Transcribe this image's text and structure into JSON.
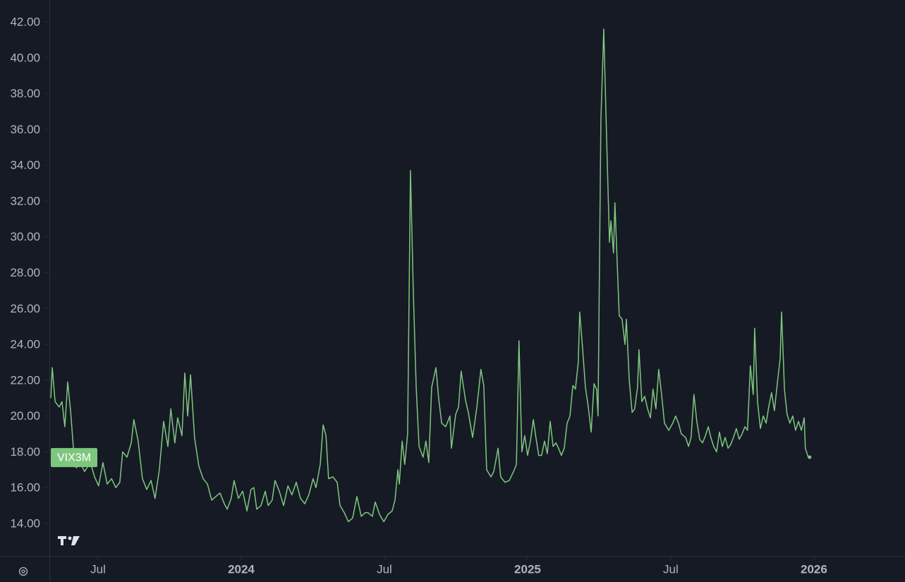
{
  "chart_data": {
    "type": "line",
    "x": [
      2023.335,
      2023.34,
      2023.35,
      2023.364,
      2023.374,
      2023.384,
      2023.394,
      2023.404,
      2023.414,
      2023.424,
      2023.438,
      2023.453,
      2023.473,
      2023.488,
      2023.502,
      2023.517,
      2023.532,
      2023.547,
      2023.562,
      2023.576,
      2023.586,
      2023.601,
      2023.616,
      2023.625,
      2023.64,
      2023.655,
      2023.67,
      2023.685,
      2023.699,
      2023.714,
      2023.729,
      2023.744,
      2023.754,
      2023.768,
      2023.778,
      2023.793,
      2023.803,
      2023.813,
      2023.823,
      2023.837,
      2023.852,
      2023.867,
      2023.882,
      2023.897,
      2023.911,
      2023.926,
      2023.941,
      2023.951,
      2023.965,
      2023.975,
      2023.99,
      2024.005,
      2024.02,
      2024.034,
      2024.044,
      2024.054,
      2024.069,
      2024.084,
      2024.094,
      2024.108,
      2024.118,
      2024.133,
      2024.148,
      2024.163,
      2024.177,
      2024.192,
      2024.207,
      2024.222,
      2024.236,
      2024.251,
      2024.261,
      2024.276,
      2024.286,
      2024.296,
      2024.305,
      2024.32,
      2024.335,
      2024.345,
      2024.36,
      2024.374,
      2024.389,
      2024.404,
      2024.419,
      2024.433,
      2024.443,
      2024.458,
      2024.468,
      2024.483,
      2024.498,
      2024.512,
      2024.527,
      2024.537,
      2024.547,
      2024.552,
      2024.562,
      2024.571,
      2024.581,
      2024.591,
      2024.601,
      2024.611,
      2024.621,
      2024.635,
      2024.645,
      2024.655,
      2024.665,
      2024.68,
      2024.69,
      2024.7,
      2024.714,
      2024.729,
      2024.734,
      2024.749,
      2024.759,
      2024.768,
      2024.783,
      2024.793,
      2024.808,
      2024.823,
      2024.837,
      2024.847,
      2024.857,
      2024.872,
      2024.882,
      2024.897,
      2024.906,
      2024.921,
      2024.936,
      2024.951,
      2024.961,
      2024.97,
      2024.98,
      2024.99,
      2025.0,
      2025.01,
      2025.02,
      2025.03,
      2025.039,
      2025.049,
      2025.059,
      2025.069,
      2025.079,
      2025.089,
      2025.099,
      2025.108,
      2025.118,
      2025.128,
      2025.138,
      2025.148,
      2025.158,
      2025.167,
      2025.177,
      2025.182,
      2025.192,
      2025.202,
      2025.212,
      2025.222,
      2025.232,
      2025.241,
      2025.246,
      2025.256,
      2025.266,
      2025.276,
      2025.286,
      2025.291,
      2025.3,
      2025.305,
      2025.315,
      2025.32,
      2025.33,
      2025.34,
      2025.345,
      2025.355,
      2025.365,
      2025.374,
      2025.384,
      2025.389,
      2025.399,
      2025.409,
      2025.419,
      2025.429,
      2025.438,
      2025.448,
      2025.458,
      2025.468,
      2025.478,
      2025.493,
      2025.507,
      2025.517,
      2025.527,
      2025.537,
      2025.552,
      2025.562,
      2025.571,
      2025.581,
      2025.591,
      2025.601,
      2025.611,
      2025.621,
      2025.631,
      2025.64,
      2025.65,
      2025.66,
      2025.67,
      2025.68,
      2025.69,
      2025.7,
      2025.709,
      2025.719,
      2025.729,
      2025.739,
      2025.749,
      2025.759,
      2025.768,
      2025.778,
      2025.788,
      2025.793,
      2025.803,
      2025.813,
      2025.823,
      2025.833,
      2025.842,
      2025.852,
      2025.862,
      2025.872,
      2025.882,
      2025.887,
      2025.897,
      2025.906,
      2025.916,
      2025.926,
      2025.936,
      2025.946,
      2025.956,
      2025.966,
      2025.97,
      2025.98,
      2025.985
    ],
    "series": [
      {
        "name": "VIX3M",
        "color": "#7ec77e",
        "values": [
          21.0,
          22.7,
          20.8,
          20.5,
          20.8,
          19.4,
          21.9,
          20.3,
          18.2,
          17.1,
          17.4,
          16.9,
          17.4,
          16.6,
          16.1,
          17.4,
          16.2,
          16.5,
          16.0,
          16.3,
          18.0,
          17.7,
          18.5,
          19.8,
          18.6,
          16.5,
          15.9,
          16.4,
          15.4,
          17.0,
          19.7,
          18.3,
          20.4,
          18.5,
          19.9,
          18.9,
          22.4,
          20.0,
          22.3,
          18.8,
          17.2,
          16.5,
          16.2,
          15.3,
          15.5,
          15.7,
          15.1,
          14.8,
          15.4,
          16.4,
          15.4,
          15.8,
          14.7,
          15.9,
          16.0,
          14.8,
          15.0,
          15.8,
          15.0,
          15.3,
          16.4,
          15.8,
          15.0,
          16.1,
          15.6,
          16.3,
          15.4,
          15.1,
          15.6,
          16.5,
          16.0,
          17.3,
          19.5,
          18.9,
          16.5,
          16.6,
          16.3,
          15.0,
          14.6,
          14.1,
          14.3,
          15.5,
          14.4,
          14.6,
          14.6,
          14.4,
          15.2,
          14.5,
          14.1,
          14.5,
          14.7,
          15.3,
          17.0,
          16.2,
          18.6,
          17.3,
          19.0,
          33.7,
          26.9,
          21.6,
          18.3,
          17.7,
          18.6,
          17.4,
          21.6,
          22.7,
          20.9,
          19.6,
          19.4,
          20.0,
          18.2,
          20.1,
          20.5,
          22.5,
          20.9,
          20.2,
          18.8,
          20.5,
          22.6,
          21.7,
          17.0,
          16.6,
          16.9,
          18.2,
          16.6,
          16.3,
          16.4,
          16.9,
          17.3,
          24.2,
          18.0,
          18.9,
          17.8,
          18.6,
          19.8,
          18.7,
          17.8,
          17.8,
          18.6,
          17.9,
          19.7,
          18.3,
          18.5,
          18.2,
          17.8,
          18.2,
          19.6,
          20.0,
          21.7,
          21.5,
          23.0,
          25.8,
          23.8,
          21.6,
          20.5,
          19.1,
          21.8,
          21.5,
          20.0,
          36.5,
          41.6,
          35.5,
          29.7,
          30.9,
          29.1,
          31.9,
          27.7,
          25.6,
          25.4,
          24.0,
          25.4,
          22.0,
          20.2,
          20.4,
          21.6,
          23.7,
          20.8,
          21.1,
          20.4,
          19.9,
          21.5,
          20.4,
          22.6,
          21.2,
          19.6,
          19.2,
          19.6,
          20.0,
          19.6,
          19.0,
          18.8,
          18.3,
          18.8,
          21.2,
          19.7,
          18.7,
          18.5,
          18.9,
          19.4,
          18.8,
          18.3,
          18.0,
          19.1,
          18.3,
          18.8,
          18.2,
          18.4,
          18.8,
          19.3,
          18.7,
          19.0,
          19.4,
          19.2,
          22.8,
          21.2,
          24.9,
          20.8,
          19.3,
          20.0,
          19.6,
          20.5,
          21.3,
          20.3,
          21.8,
          23.2,
          25.8,
          21.5,
          20.1,
          19.6,
          20.0,
          19.2,
          19.7,
          19.2,
          19.9,
          18.2,
          17.7,
          17.7
        ]
      }
    ],
    "xlim": [
      2023.33,
      2026.318
    ],
    "xticks": [
      {
        "value": 2023.5,
        "label": "Jul"
      },
      2024,
      {
        "value": 2024.5,
        "label": "Jul"
      },
      2025,
      {
        "value": 2025.5,
        "label": "Jul"
      },
      2026
    ],
    "ylim": [
      12.19,
      43.22
    ],
    "yticks": [
      {
        "value": 14,
        "label": "14.00"
      },
      {
        "value": 16,
        "label": "16.00"
      },
      {
        "value": 18,
        "label": "18.00"
      },
      {
        "value": 20,
        "label": "20.00"
      },
      {
        "value": 22,
        "label": "22.00"
      },
      {
        "value": 24,
        "label": "24.00"
      },
      {
        "value": 26,
        "label": "26.00"
      },
      {
        "value": 28,
        "label": "28.00"
      },
      {
        "value": 30,
        "label": "30.00"
      },
      {
        "value": 32,
        "label": "32.00"
      },
      {
        "value": 34,
        "label": "34.00"
      },
      {
        "value": 36,
        "label": "36.00"
      },
      {
        "value": 38,
        "label": "38.00"
      },
      {
        "value": 40,
        "label": "40.00"
      },
      {
        "value": 42,
        "label": "42.00"
      }
    ]
  }
}
